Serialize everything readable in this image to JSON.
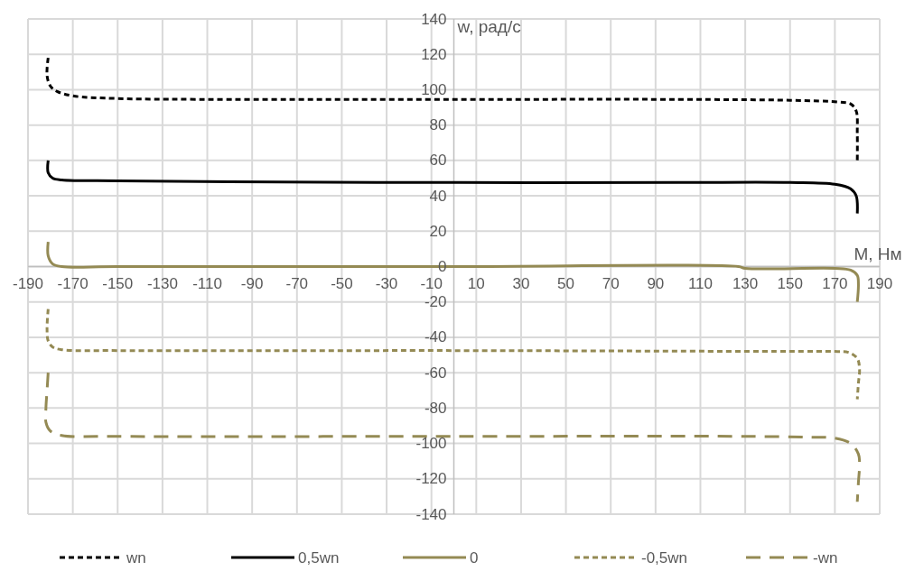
{
  "chart_data": {
    "type": "line",
    "xlabel": "М, Нм",
    "ylabel": "w, рад/с",
    "xlim": [
      -190,
      190
    ],
    "xticks": [
      -190,
      -170,
      -150,
      -130,
      -110,
      -90,
      -70,
      -50,
      -30,
      -10,
      10,
      30,
      50,
      70,
      90,
      110,
      130,
      150,
      170,
      190
    ],
    "ylim": [
      -140,
      140
    ],
    "yticks": [
      -140,
      -120,
      -100,
      -80,
      -60,
      -40,
      -20,
      0,
      20,
      40,
      60,
      80,
      100,
      120,
      140
    ],
    "grid": true,
    "legend": "bottom",
    "series": [
      {
        "name": "wn",
        "color": "#000000",
        "line_style": "dotted",
        "x": [
          -181,
          -181.5,
          -180,
          -177,
          -170,
          -150,
          -100,
          0,
          100,
          150,
          172,
          177,
          179.5,
          180,
          180
        ],
        "values": [
          118,
          108,
          102,
          99,
          96.5,
          95,
          94.5,
          94.5,
          94.5,
          94,
          93,
          92,
          88,
          75,
          60
        ]
      },
      {
        "name": "0,5wn",
        "color": "#000000",
        "line_style": "solid",
        "x": [
          -181,
          -181,
          -179,
          -175,
          -150,
          -100,
          0,
          100,
          150,
          170,
          177,
          179.5,
          180
        ],
        "values": [
          60,
          53,
          50,
          49,
          48.5,
          48,
          47.5,
          47.5,
          47.5,
          46.5,
          44,
          40,
          30
        ]
      },
      {
        "name": "0",
        "color": "#948a54",
        "line_style": "solid",
        "x": [
          -181,
          -181,
          -179,
          -175,
          -150,
          0,
          127,
          130,
          170,
          177,
          180,
          180.5,
          180
        ],
        "values": [
          14,
          6,
          1.5,
          0,
          0,
          0,
          0,
          -1,
          -1,
          -2,
          -5,
          -10,
          -20
        ]
      },
      {
        "name": "-0,5wn",
        "color": "#948a54",
        "line_style": "dotted",
        "x": [
          -181,
          -181.5,
          -181,
          -179,
          -175,
          -150,
          0,
          150,
          170,
          176,
          180,
          181,
          180.5,
          180
        ],
        "values": [
          -24,
          -35,
          -42,
          -45.5,
          -47,
          -47.5,
          -47.5,
          -48,
          -48,
          -48.5,
          -52,
          -58,
          -66,
          -75
        ]
      },
      {
        "name": "-wn",
        "color": "#948a54",
        "line_style": "dashed",
        "x": [
          -181,
          -181.5,
          -182,
          -182,
          -180,
          -175,
          -150,
          0,
          130,
          160,
          170,
          177,
          180.5,
          181,
          180.5,
          180
        ],
        "values": [
          -60,
          -70,
          -80,
          -88,
          -93,
          -95.5,
          -96,
          -96,
          -96,
          -96.5,
          -97,
          -100,
          -106,
          -112,
          -122,
          -133
        ]
      }
    ]
  }
}
